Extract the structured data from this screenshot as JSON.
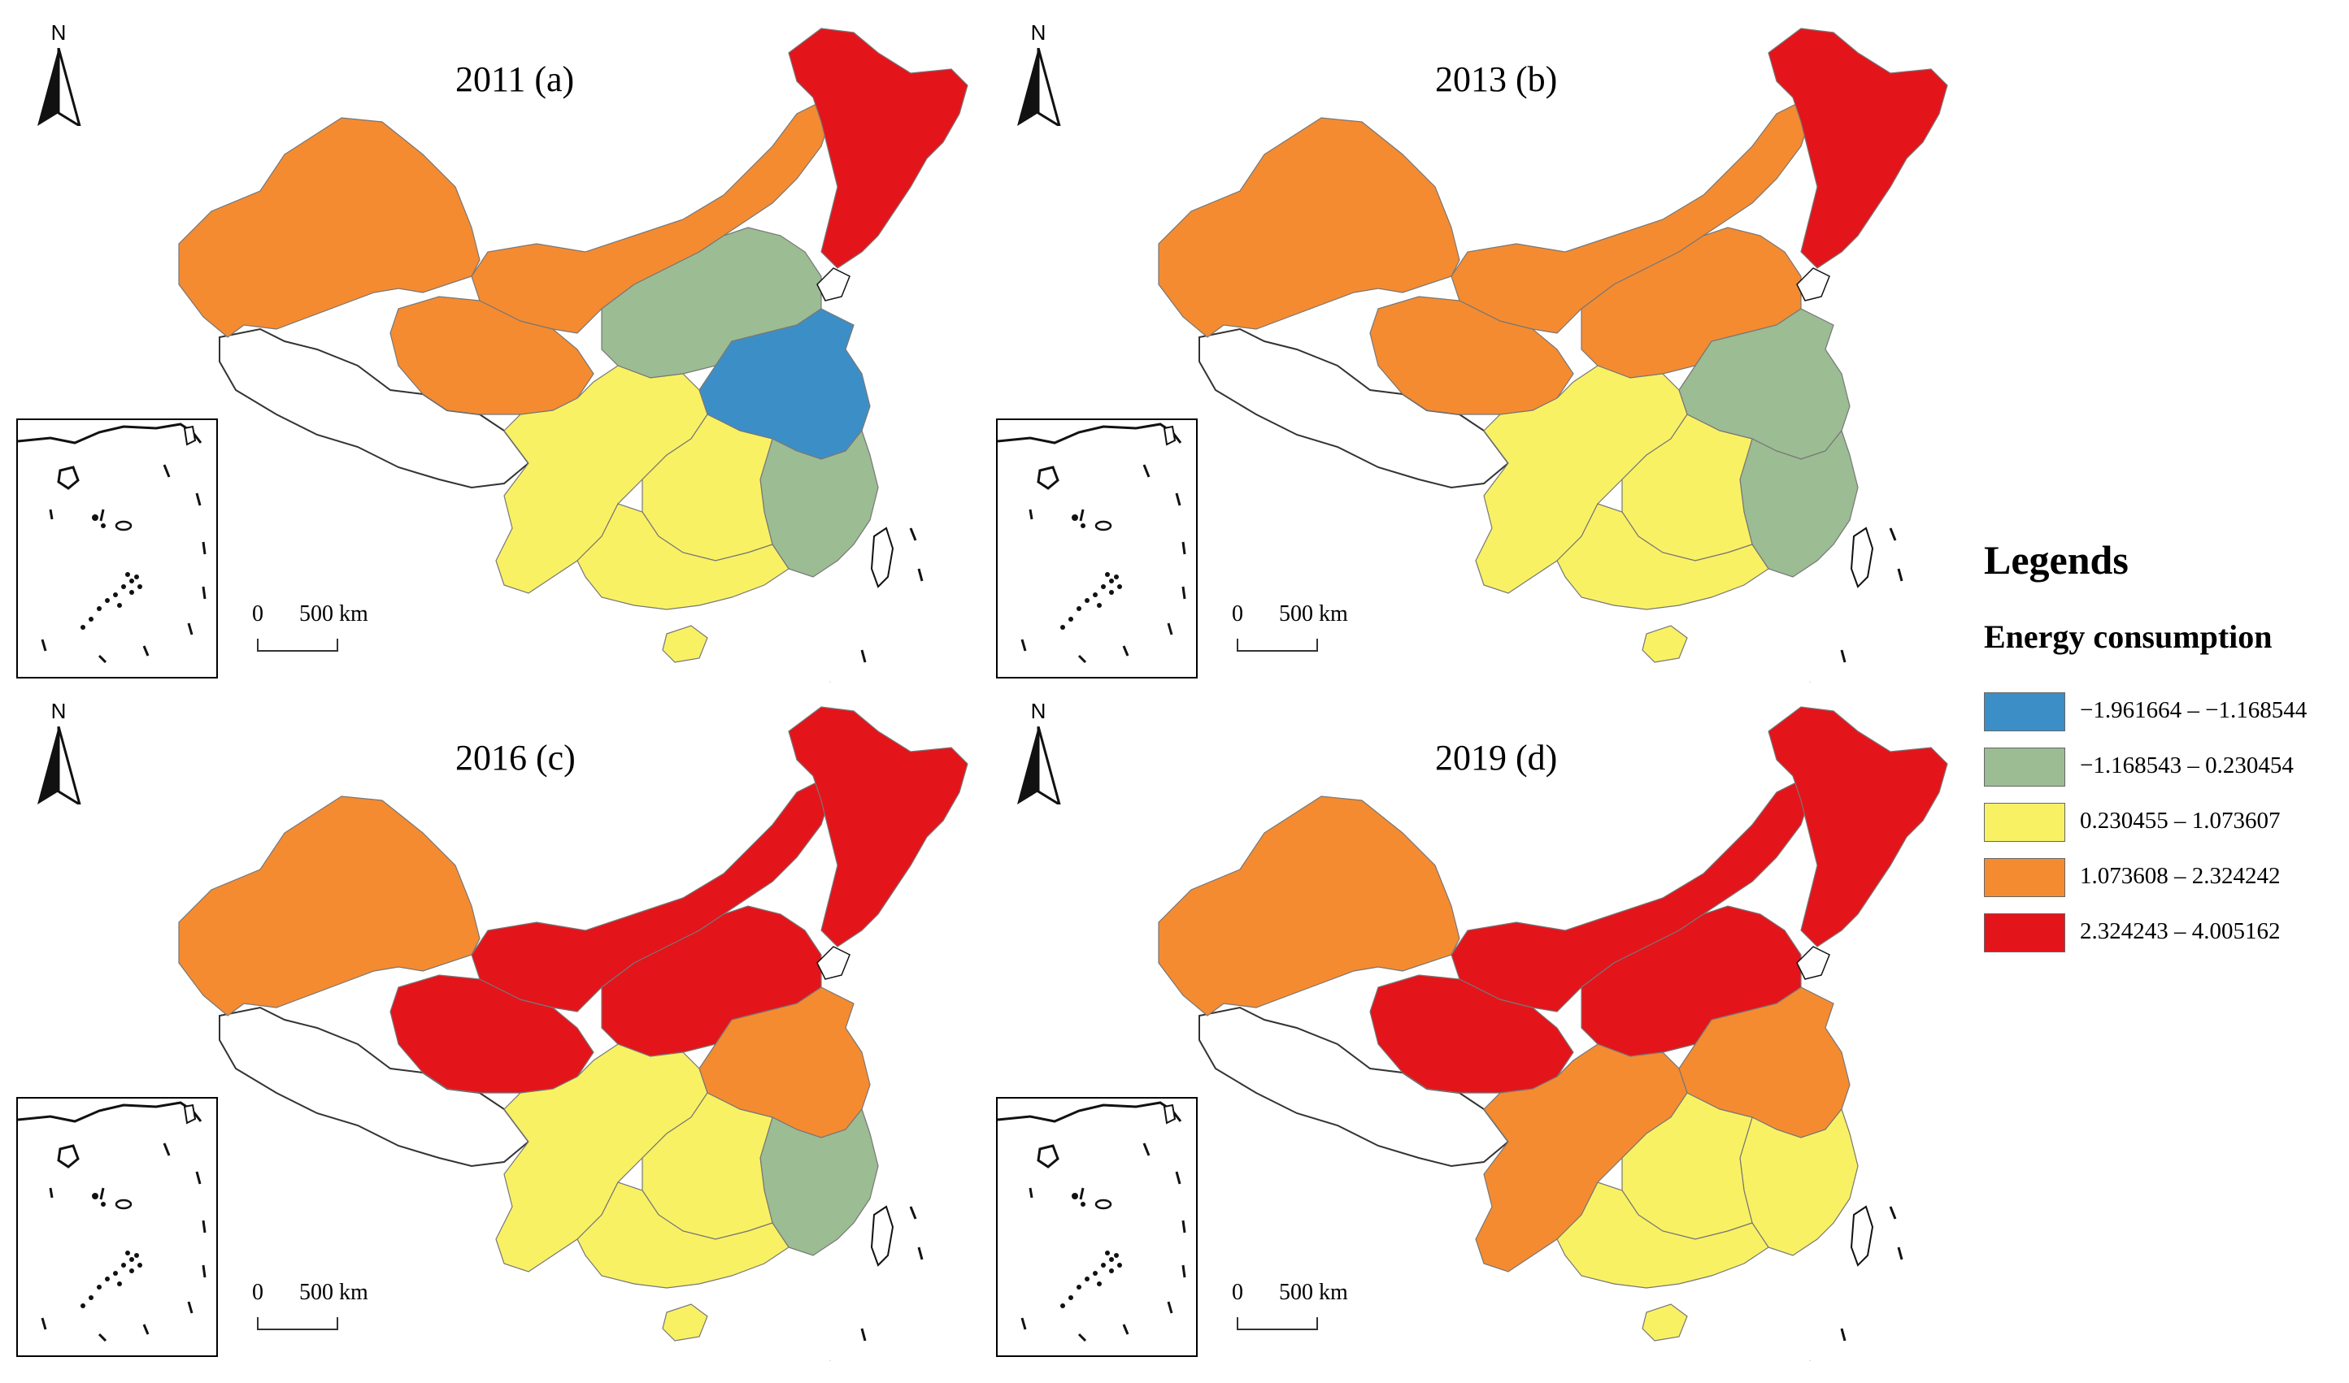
{
  "panels": [
    {
      "title": "2011 (a)",
      "north_label": "N",
      "scale_zero": "0",
      "scale_distance": "500 km",
      "fills": {
        "northwest": "#F58B30",
        "qinghai": "#F58B30",
        "north_belt": "#F58B30",
        "northeast": "#E4141B",
        "north_central": "#9CBC93",
        "east": "#3C8FC6",
        "southeast": "#9CBC93",
        "southwest": "#F9F164",
        "south": "#F9F164",
        "south_central": "#F9F164"
      }
    },
    {
      "title": "2013 (b)",
      "north_label": "N",
      "scale_zero": "0",
      "scale_distance": "500 km",
      "fills": {
        "northwest": "#F58B30",
        "qinghai": "#F58B30",
        "north_belt": "#F58B30",
        "northeast": "#E4141B",
        "north_central": "#F58B30",
        "east": "#9CBC93",
        "southeast": "#9CBC93",
        "southwest": "#F9F164",
        "south": "#F9F164",
        "south_central": "#F9F164"
      }
    },
    {
      "title": "2016 (c)",
      "north_label": "N",
      "scale_zero": "0",
      "scale_distance": "500 km",
      "fills": {
        "northwest": "#F58B30",
        "qinghai": "#E4141B",
        "north_belt": "#E4141B",
        "northeast": "#E4141B",
        "north_central": "#E4141B",
        "east": "#F58B30",
        "southeast": "#9CBC93",
        "southwest": "#F9F164",
        "south": "#F9F164",
        "south_central": "#F9F164"
      }
    },
    {
      "title": "2019 (d)",
      "north_label": "N",
      "scale_zero": "0",
      "scale_distance": "500 km",
      "fills": {
        "northwest": "#F58B30",
        "qinghai": "#E4141B",
        "north_belt": "#E4141B",
        "northeast": "#E4141B",
        "north_central": "#E4141B",
        "east": "#F58B30",
        "southeast": "#F9F164",
        "southwest": "#F58B30",
        "south": "#F9F164",
        "south_central": "#F9F164"
      }
    }
  ],
  "legend": {
    "heading": "Legends",
    "subheading": "Energy consumption",
    "items": [
      {
        "label": "−1.961664 – −1.168544",
        "color": "#3C8FC6"
      },
      {
        "label": "−1.168543 – 0.230454",
        "color": "#9CBC93"
      },
      {
        "label": "0.230455 – 1.073607",
        "color": "#F9F164"
      },
      {
        "label": "1.073608 – 2.324242",
        "color": "#F58B30"
      },
      {
        "label": "2.324243 – 4.005162",
        "color": "#E4141B"
      }
    ]
  }
}
